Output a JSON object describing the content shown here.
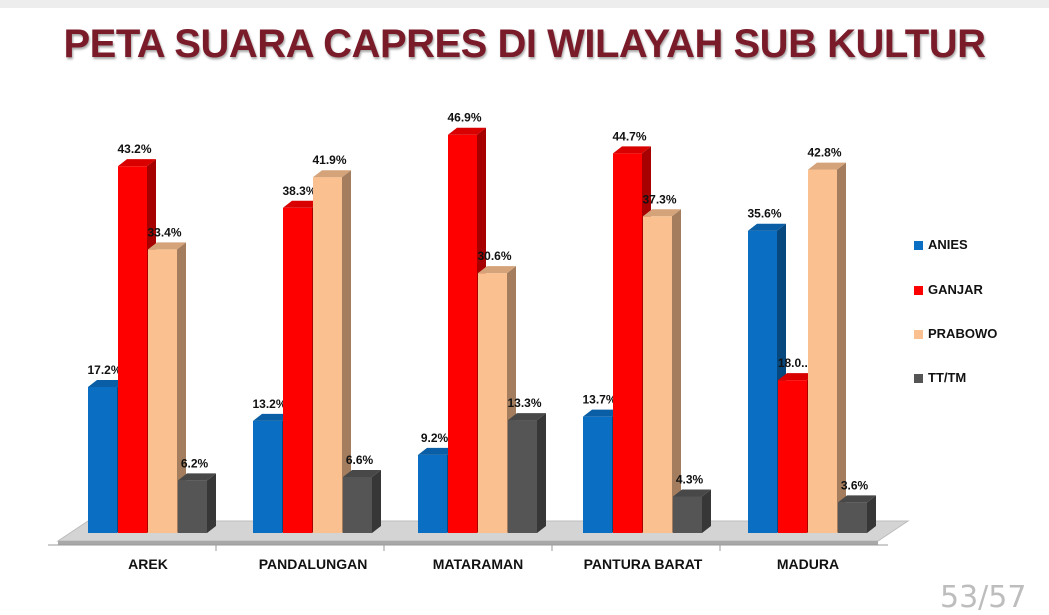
{
  "title": "PETA SUARA CAPRES DI WILAYAH SUB KULTUR",
  "page_number": "53/57",
  "chart_data": {
    "type": "bar",
    "categories": [
      "AREK",
      "PANDALUNGAN",
      "MATARAMAN",
      "PANTURA BARAT",
      "MADURA"
    ],
    "series": [
      {
        "name": "ANIES",
        "values": [
          17.2,
          13.2,
          9.2,
          13.7,
          35.6
        ],
        "labels": [
          "17.2%",
          "13.2%",
          "9.2%",
          "13.7%",
          "35.6%"
        ],
        "color": "#0a6fc2"
      },
      {
        "name": "GANJAR",
        "values": [
          43.2,
          38.3,
          46.9,
          44.7,
          18.0
        ],
        "labels": [
          "43.2%",
          "38.3%",
          "46.9%",
          "44.7%",
          "18.0..."
        ],
        "color": "#ff0000"
      },
      {
        "name": "PRABOWO",
        "values": [
          33.4,
          41.9,
          30.6,
          37.3,
          42.8
        ],
        "labels": [
          "33.4%",
          "41.9%",
          "30.6%",
          "37.3%",
          "42.8%"
        ],
        "color": "#fac08f"
      },
      {
        "name": "TT/TM",
        "values": [
          6.2,
          6.6,
          13.3,
          4.3,
          3.6
        ],
        "labels": [
          "6.2%",
          "6.6%",
          "13.3%",
          "4.3%",
          "3.6%"
        ],
        "color": "#555555"
      }
    ],
    "ylim": [
      0,
      50
    ],
    "grid": false,
    "legend_position": "right",
    "style": "3d-clustered-column"
  }
}
